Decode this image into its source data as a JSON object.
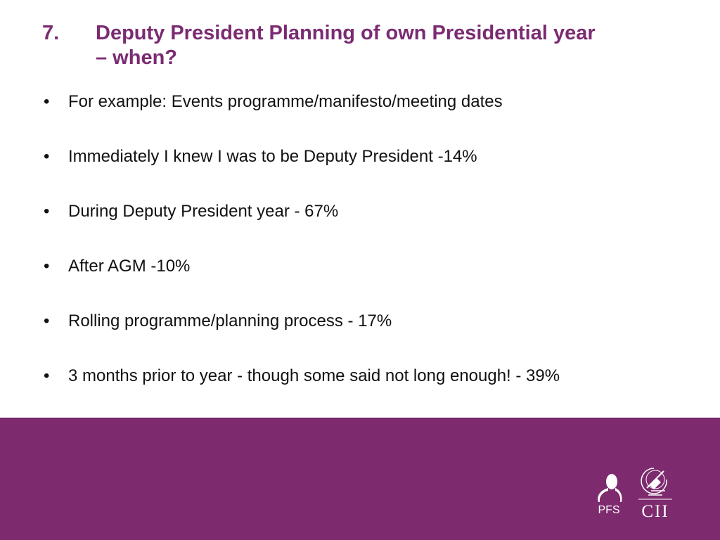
{
  "slide": {
    "title_number": "7.",
    "title_line1": "Deputy President Planning of own Presidential year",
    "title_line2": "– when?",
    "bullet_char": "•",
    "bullets": [
      "For example: Events programme/manifesto/meeting dates",
      "Immediately I knew I was to be Deputy President -14%",
      "During Deputy President year - 67%",
      "After AGM -10%",
      "Rolling programme/planning process - 17%",
      "3 months prior to year - though some said not long enough! - 39%"
    ]
  },
  "footer": {
    "logo_pfs_text": "PFS",
    "logo_cii_text": "CII"
  },
  "colors": {
    "title": "#7b2b72",
    "footer_background": "#7e2a6e",
    "text": "#111111"
  }
}
